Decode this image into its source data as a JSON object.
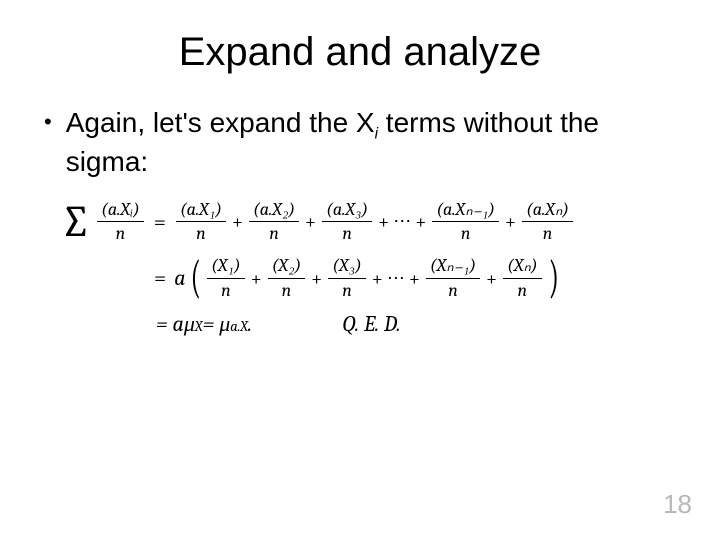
{
  "title": "Expand and analyze",
  "bullet_prefix": "Again, let's expand the X",
  "bullet_sub": "i",
  "bullet_suffix": " terms without the sigma:",
  "sigma": "∑",
  "eq": "=",
  "plus": "+",
  "dots": "⋯",
  "period": ".",
  "lparen": "(",
  "rparen": ")",
  "frac": {
    "lhs_num": "(a.Xᵢ)",
    "t1_num": "(a.X₁)",
    "t2_num": "(a.X₂)",
    "t3_num": "(a.X₃)",
    "tn1_num": "(a.Xₙ₋₁)",
    "tn_num": "(a.Xₙ)",
    "x1_num": "(X₁)",
    "x2_num": "(X₂)",
    "x3_num": "(X₃)",
    "xn1_num": "(Xₙ₋₁)",
    "xn_num": "(Xₙ)",
    "den": "n"
  },
  "line2_a": "a",
  "line3_lead": "= aμ",
  "line3_sub1": "X",
  "line3_mid": " = μ",
  "line3_sub2": "a.X",
  "qed": "Q. E. D.",
  "page_number": "18",
  "colors": {
    "text": "#000000",
    "background": "#ffffff",
    "page_num": "#b8b8b8"
  }
}
